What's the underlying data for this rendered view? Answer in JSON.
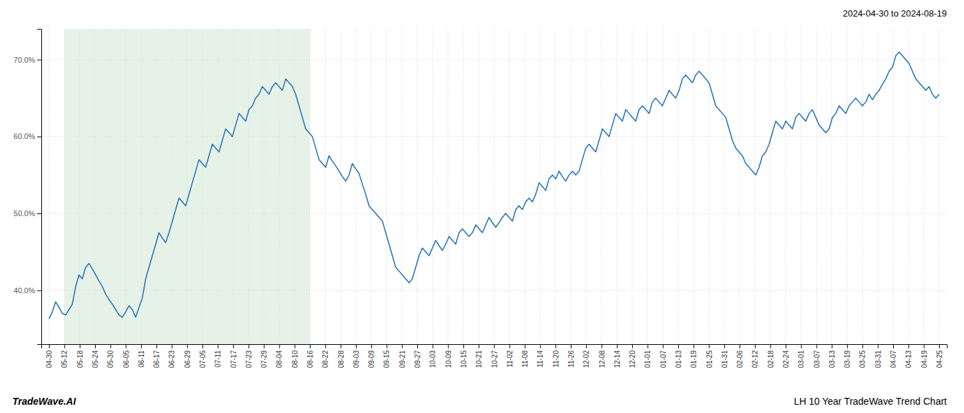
{
  "chart_data": {
    "type": "line",
    "title": "LH 10 Year TradeWave Trend Chart",
    "subtitle": "2024-04-30 to 2024-08-19",
    "annotations": [
      "TradeWave.AI"
    ],
    "color": "#1f6eb5",
    "grid": true,
    "shade": {
      "start": 1,
      "end": 17,
      "color": "#d6ead7"
    },
    "xlim": [
      -0.5,
      58.5
    ],
    "xticks": [
      {
        "value": 0,
        "label": "04-30"
      },
      {
        "value": 1,
        "label": "05-12"
      },
      {
        "value": 2,
        "label": "05-18"
      },
      {
        "value": 3,
        "label": "05-24"
      },
      {
        "value": 4,
        "label": "05-30"
      },
      {
        "value": 5,
        "label": "06-05"
      },
      {
        "value": 6,
        "label": "06-11"
      },
      {
        "value": 7,
        "label": "06-17"
      },
      {
        "value": 8,
        "label": "06-23"
      },
      {
        "value": 9,
        "label": "06-29"
      },
      {
        "value": 10,
        "label": "07-05"
      },
      {
        "value": 11,
        "label": "07-11"
      },
      {
        "value": 12,
        "label": "07-17"
      },
      {
        "value": 13,
        "label": "07-23"
      },
      {
        "value": 14,
        "label": "07-29"
      },
      {
        "value": 15,
        "label": "08-04"
      },
      {
        "value": 16,
        "label": "08-10"
      },
      {
        "value": 17,
        "label": "08-16"
      },
      {
        "value": 18,
        "label": "08-22"
      },
      {
        "value": 19,
        "label": "08-28"
      },
      {
        "value": 20,
        "label": "09-03"
      },
      {
        "value": 21,
        "label": "09-09"
      },
      {
        "value": 22,
        "label": "09-15"
      },
      {
        "value": 23,
        "label": "09-21"
      },
      {
        "value": 24,
        "label": "09-27"
      },
      {
        "value": 25,
        "label": "10-03"
      },
      {
        "value": 26,
        "label": "10-09"
      },
      {
        "value": 27,
        "label": "10-15"
      },
      {
        "value": 28,
        "label": "10-21"
      },
      {
        "value": 29,
        "label": "10-27"
      },
      {
        "value": 30,
        "label": "11-02"
      },
      {
        "value": 31,
        "label": "11-08"
      },
      {
        "value": 32,
        "label": "11-14"
      },
      {
        "value": 33,
        "label": "11-20"
      },
      {
        "value": 34,
        "label": "11-26"
      },
      {
        "value": 35,
        "label": "12-02"
      },
      {
        "value": 36,
        "label": "12-08"
      },
      {
        "value": 37,
        "label": "12-14"
      },
      {
        "value": 38,
        "label": "12-20"
      },
      {
        "value": 39,
        "label": "01-01"
      },
      {
        "value": 40,
        "label": "01-07"
      },
      {
        "value": 41,
        "label": "01-13"
      },
      {
        "value": 42,
        "label": "01-19"
      },
      {
        "value": 43,
        "label": "01-25"
      },
      {
        "value": 44,
        "label": "01-31"
      },
      {
        "value": 45,
        "label": "02-06"
      },
      {
        "value": 46,
        "label": "02-12"
      },
      {
        "value": 47,
        "label": "02-18"
      },
      {
        "value": 48,
        "label": "02-24"
      },
      {
        "value": 49,
        "label": "03-01"
      },
      {
        "value": 50,
        "label": "03-07"
      },
      {
        "value": 51,
        "label": "03-13"
      },
      {
        "value": 52,
        "label": "03-19"
      },
      {
        "value": 53,
        "label": "03-25"
      },
      {
        "value": 54,
        "label": "03-31"
      },
      {
        "value": 55,
        "label": "04-07"
      },
      {
        "value": 56,
        "label": "04-13"
      },
      {
        "value": 57,
        "label": "04-19"
      },
      {
        "value": 58,
        "label": "04-25"
      }
    ],
    "ylim": [
      33,
      74
    ],
    "yticks": [
      {
        "value": 40.0,
        "label": "40.0%"
      },
      {
        "value": 50.0,
        "label": "50.0%"
      },
      {
        "value": 60.0,
        "label": "60.0%"
      },
      {
        "value": 70.0,
        "label": "70.0%"
      }
    ],
    "x": [
      0,
      0.217228,
      0.434457,
      0.651685,
      0.868914,
      1.086142,
      1.303371,
      1.520599,
      1.737828,
      1.955056,
      2.172285,
      2.389513,
      2.606742,
      2.82397,
      3.041199,
      3.258427,
      3.475655,
      3.692884,
      3.910112,
      4.127341,
      4.344569,
      4.561798,
      4.779026,
      4.996255,
      5.213483,
      5.430712,
      5.64794,
      5.865169,
      6.082397,
      6.299625,
      6.516854,
      6.734082,
      6.951311,
      7.168539,
      7.385768,
      7.602996,
      7.820225,
      8.037453,
      8.254682,
      8.47191,
      8.689139,
      8.906367,
      9.123596,
      9.340824,
      9.558052,
      9.775281,
      9.992509,
      10.209738,
      10.426966,
      10.644195,
      10.861423,
      11.078652,
      11.29588,
      11.513109,
      11.730337,
      11.947566,
      12.164794,
      12.382022,
      12.599251,
      12.816479,
      13.033708,
      13.250936,
      13.468165,
      13.685393,
      13.902622,
      14.11985,
      14.337079,
      14.554307,
      14.771536,
      14.988764,
      15.205993,
      15.423221,
      15.640449,
      15.857678,
      16.074906,
      16.292135,
      16.509363,
      16.726592,
      16.94382,
      17.161049,
      17.378277,
      17.595506,
      17.812734,
      18.029963,
      18.247191,
      18.464419,
      18.681648,
      18.898876,
      19.116105,
      19.333333,
      19.550562,
      19.76779,
      19.985019,
      20.202247,
      20.419476,
      20.636704,
      20.853933,
      21.071161,
      21.28839,
      21.505618,
      21.722846,
      21.940075,
      22.157303,
      22.374532,
      22.59176,
      22.808989,
      23.026217,
      23.243446,
      23.460674,
      23.677903,
      23.895131,
      24.11236,
      24.329588,
      24.546816,
      24.764045,
      24.981273,
      25.198502,
      25.41573,
      25.632959,
      25.850187,
      26.067416,
      26.284644,
      26.501873,
      26.719101,
      26.93633,
      27.153558,
      27.370787,
      27.588015,
      27.805243,
      28.022472,
      28.2397,
      28.456929,
      28.674157,
      28.891386,
      29.108614,
      29.325843,
      29.543071,
      29.7603,
      29.977528,
      30.194757,
      30.411985,
      30.629213,
      30.846442,
      31.06367,
      31.280899,
      31.498127,
      31.715356,
      31.932584,
      32.149813,
      32.367041,
      32.58427,
      32.801498,
      33.018727,
      33.235955,
      33.453184,
      33.670412,
      33.88764,
      34.104869,
      34.322097,
      34.539326,
      34.756554,
      34.973783,
      35.191011,
      35.40824,
      35.625468,
      35.842697,
      36.059925,
      36.277154,
      36.494382,
      36.71161,
      36.928839,
      37.146067,
      37.363296,
      37.580524,
      37.797753,
      38.014981,
      38.23221,
      38.449438,
      38.666667,
      38.883895,
      39.101124,
      39.318352,
      39.535581,
      39.752809,
      39.970037,
      40.187266,
      40.404494,
      40.621723,
      40.838951,
      41.05618,
      41.273408,
      41.490637,
      41.707865,
      41.925094,
      42.142322,
      42.359551,
      42.576779,
      42.794007,
      43.011236,
      43.228464,
      43.445693,
      43.662921,
      43.88015,
      44.097378,
      44.314607,
      44.531835,
      44.749064,
      44.966292,
      45.183521,
      45.400749,
      45.617978,
      45.835206,
      46.052434,
      46.269663,
      46.486891,
      46.70412,
      46.921348,
      47.138577,
      47.355805,
      47.573034,
      47.790262,
      48.007491,
      48.224719,
      48.441948,
      48.659176,
      48.876404,
      49.093633,
      49.310861,
      49.52809,
      49.745318,
      49.962547,
      50.179775,
      50.397004,
      50.614232,
      50.831461,
      51.048689,
      51.265918,
      51.483146,
      51.700375,
      51.917603,
      52.134831,
      52.35206,
      52.569288,
      52.786517,
      53.003745,
      53.220974,
      53.438202,
      53.655431,
      53.872659,
      54.089888,
      54.307116,
      54.524345,
      54.741573,
      54.958801,
      55.17603,
      55.393258,
      55.610487,
      55.827715,
      56.044944,
      56.262172,
      56.479401,
      56.696629,
      56.913858,
      57.131086,
      57.348315,
      57.565543,
      57.782772,
      58
    ],
    "values": [
      36.3,
      37.2,
      38.5,
      37.8,
      37.0,
      36.8,
      37.5,
      38.2,
      40.5,
      42.0,
      41.5,
      43.0,
      43.5,
      42.8,
      42.0,
      41.2,
      40.5,
      39.5,
      38.8,
      38.2,
      37.5,
      36.8,
      36.5,
      37.2,
      38.0,
      37.5,
      36.5,
      37.8,
      39.0,
      41.5,
      43.0,
      44.5,
      46.0,
      47.5,
      46.8,
      46.2,
      47.5,
      49.0,
      50.5,
      52.0,
      51.5,
      51.0,
      52.5,
      54.0,
      55.5,
      57.0,
      56.5,
      56.0,
      57.5,
      59.0,
      58.5,
      58.0,
      59.5,
      61.0,
      60.5,
      60.0,
      61.5,
      63.0,
      62.5,
      62.0,
      63.5,
      64.0,
      65.0,
      65.5,
      66.5,
      66.0,
      65.5,
      66.5,
      67.0,
      66.5,
      66.0,
      67.5,
      67.0,
      66.5,
      65.5,
      64.0,
      62.5,
      61.0,
      60.5,
      60.0,
      58.5,
      57.0,
      56.5,
      56.0,
      57.5,
      56.8,
      56.2,
      55.5,
      54.8,
      54.2,
      55.0,
      56.5,
      55.8,
      55.2,
      53.8,
      52.5,
      51.0,
      50.5,
      50.0,
      49.5,
      49.0,
      47.5,
      46.0,
      44.5,
      43.0,
      42.5,
      42.0,
      41.5,
      41.0,
      41.5,
      43.0,
      44.5,
      45.5,
      45.0,
      44.5,
      45.5,
      46.5,
      45.8,
      45.2,
      46.0,
      47.0,
      46.5,
      46.0,
      47.5,
      48.0,
      47.5,
      47.0,
      47.5,
      48.5,
      48.0,
      47.5,
      48.5,
      49.5,
      48.8,
      48.2,
      48.8,
      49.5,
      50.0,
      49.5,
      49.0,
      50.5,
      51.0,
      50.5,
      51.5,
      52.0,
      51.5,
      52.5,
      54.0,
      53.5,
      53.0,
      54.5,
      55.0,
      54.5,
      55.5,
      54.8,
      54.2,
      55.0,
      55.5,
      55.0,
      55.5,
      57.0,
      58.5,
      59.0,
      58.5,
      58.0,
      59.5,
      61.0,
      60.5,
      60.0,
      61.5,
      63.0,
      62.5,
      62.0,
      63.5,
      63.0,
      62.5,
      62.0,
      63.5,
      64.0,
      63.5,
      63.0,
      64.5,
      65.0,
      64.5,
      64.0,
      65.0,
      66.0,
      65.5,
      65.0,
      66.0,
      67.5,
      68.0,
      67.5,
      67.0,
      68.0,
      68.5,
      68.0,
      67.5,
      67.0,
      65.5,
      64.0,
      63.5,
      63.0,
      62.5,
      61.0,
      59.5,
      58.5,
      58.0,
      57.5,
      56.5,
      56.0,
      55.5,
      55.0,
      56.0,
      57.5,
      58.0,
      59.0,
      60.5,
      62.0,
      61.5,
      61.0,
      62.0,
      61.5,
      61.0,
      62.5,
      63.0,
      62.5,
      62.0,
      63.0,
      63.5,
      62.5,
      61.5,
      61.0,
      60.5,
      61.0,
      62.5,
      63.0,
      64.0,
      63.5,
      63.0,
      64.0,
      64.5,
      65.0,
      64.5,
      64.0,
      64.5,
      65.5,
      64.8,
      65.5,
      66.0,
      66.8,
      67.5,
      68.5,
      69.0,
      70.5,
      71.0,
      70.5,
      70.0,
      69.5,
      68.5,
      67.5,
      67.0,
      66.5,
      66.0,
      66.5,
      65.5,
      65.0,
      65.5
    ]
  }
}
